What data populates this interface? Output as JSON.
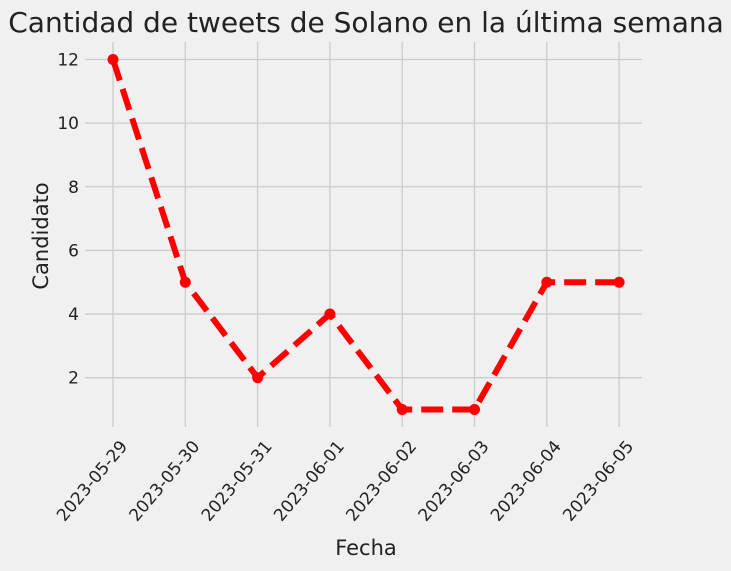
{
  "chart_data": {
    "type": "line",
    "title": "Cantidad de tweets de Solano en la última semana",
    "xlabel": "Fecha",
    "ylabel": "Candidato",
    "categories": [
      "2023-05-29",
      "2023-05-30",
      "2023-05-31",
      "2023-06-01",
      "2023-06-02",
      "2023-06-03",
      "2023-06-04",
      "2023-06-05"
    ],
    "series": [
      {
        "values": [
          12,
          5,
          2,
          4,
          1,
          1,
          5,
          5
        ]
      }
    ],
    "ylim": [
      0.45,
      12.55
    ],
    "yticks": [
      "2",
      "4",
      "6",
      "8",
      "10",
      "12"
    ],
    "grid": true,
    "line_style": "dashed",
    "marker": "circle",
    "colors": {
      "line": "#ff0000",
      "background": "#f0f0f0",
      "grid": "#cbcbcb"
    }
  }
}
